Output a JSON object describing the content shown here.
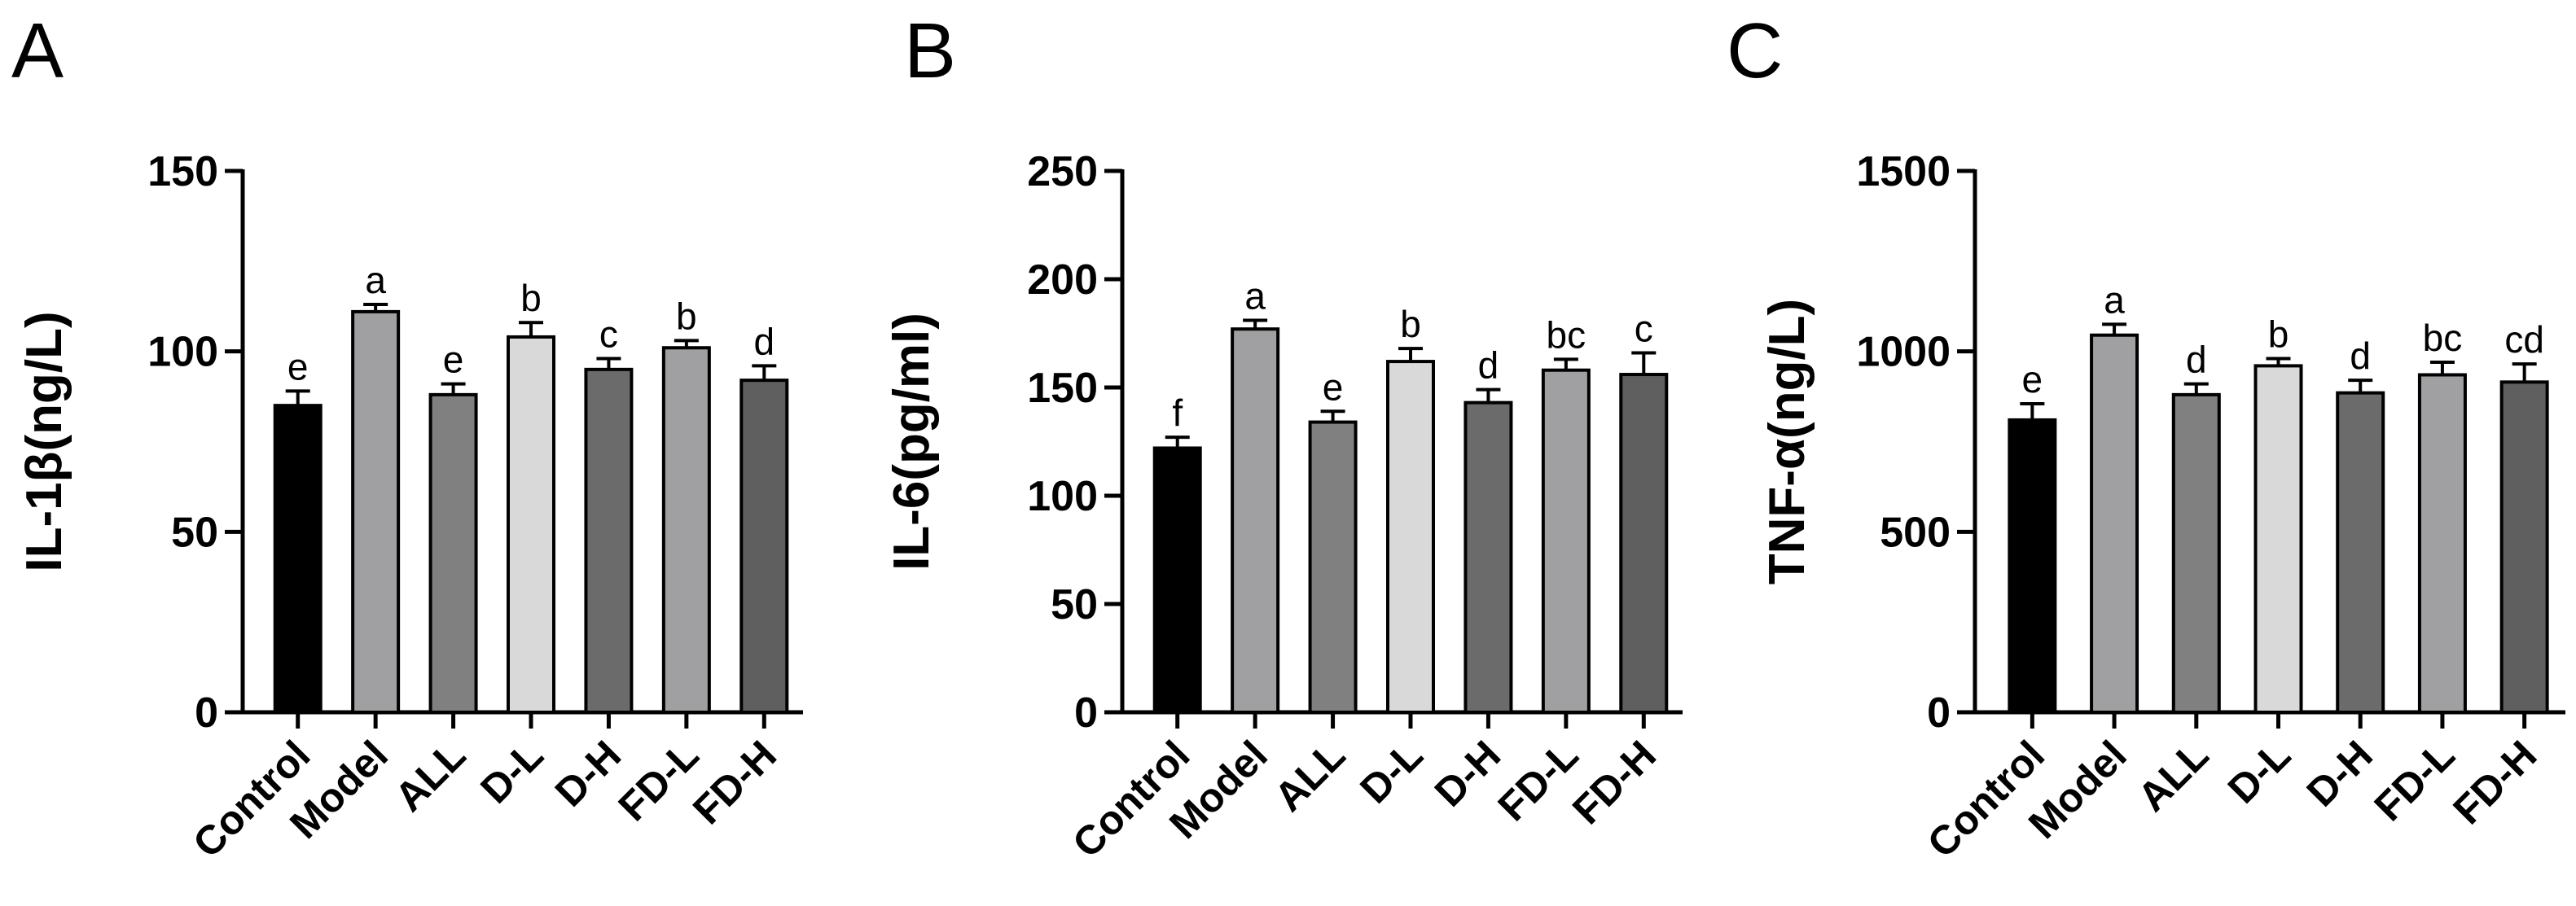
{
  "chart_data": [
    {
      "type": "bar",
      "panel": "A",
      "ylabel": "IL-1β(ng/L)",
      "ylim": [
        0,
        150
      ],
      "yticks": [
        0,
        50,
        100,
        150
      ],
      "categories": [
        "Control",
        "Model",
        "ALL",
        "D-L",
        "D-H",
        "FD-L",
        "FD-H"
      ],
      "values": [
        85,
        111,
        88,
        104,
        95,
        101,
        92
      ],
      "errors": [
        4,
        2,
        3,
        4,
        3,
        2,
        4
      ],
      "significance": [
        "e",
        "a",
        "e",
        "b",
        "c",
        "b",
        "d"
      ]
    },
    {
      "type": "bar",
      "panel": "B",
      "ylabel": "IL-6(pg/ml)",
      "ylim": [
        0,
        250
      ],
      "yticks": [
        0,
        50,
        100,
        150,
        200,
        250
      ],
      "categories": [
        "Control",
        "Model",
        "ALL",
        "D-L",
        "D-H",
        "FD-L",
        "FD-H"
      ],
      "values": [
        122,
        177,
        134,
        162,
        143,
        158,
        156
      ],
      "errors": [
        5,
        4,
        5,
        6,
        6,
        5,
        10
      ],
      "significance": [
        "f",
        "a",
        "e",
        "b",
        "d",
        "bc",
        "c"
      ]
    },
    {
      "type": "bar",
      "panel": "C",
      "ylabel": "TNF-α(ng/L)",
      "ylim": [
        0,
        1500
      ],
      "yticks": [
        0,
        500,
        1000,
        1500
      ],
      "categories": [
        "Control",
        "Model",
        "ALL",
        "D-L",
        "D-H",
        "FD-L",
        "FD-H"
      ],
      "values": [
        810,
        1045,
        880,
        960,
        885,
        935,
        915
      ],
      "errors": [
        45,
        30,
        30,
        20,
        35,
        35,
        50
      ],
      "significance": [
        "e",
        "a",
        "d",
        "b",
        "d",
        "bc",
        "cd"
      ]
    }
  ],
  "bar_colors": [
    "#000000",
    "#a0a0a2",
    "#808080",
    "#d9d9d9",
    "#6b6b6b",
    "#a0a0a2",
    "#5f5f5f"
  ]
}
